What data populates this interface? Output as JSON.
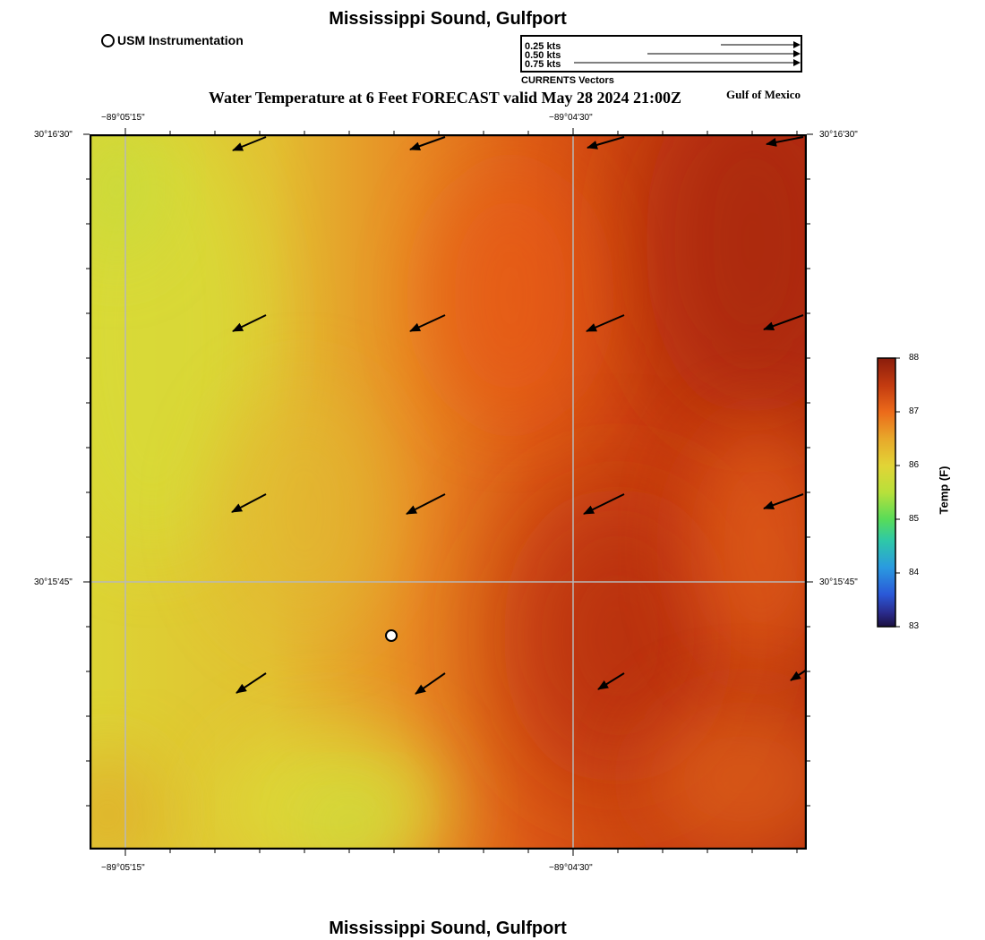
{
  "header": {
    "title": "Mississippi Sound, Gulfport",
    "subtitle": "Water Temperature at 6 Feet FORECAST valid May 28 2024 21:00Z",
    "region": "Gulf of Mexico"
  },
  "footer": {
    "title": "Mississippi Sound, Gulfport"
  },
  "station_legend": {
    "label": "USM Instrumentation"
  },
  "vector_legend": {
    "caption": "CURRENTS Vectors",
    "entries": [
      {
        "label": "0.25 kts",
        "speed_kts": 0.25
      },
      {
        "label": "0.50 kts",
        "speed_kts": 0.5
      },
      {
        "label": "0.75 kts",
        "speed_kts": 0.75
      }
    ]
  },
  "map": {
    "lon_ticks": [
      "−89°05'15\"",
      "−89°04'30\""
    ],
    "lat_ticks": [
      "30°16'30\"",
      "30°15'45\""
    ],
    "grid": true,
    "vector_direction": "toward southwest"
  },
  "colorbar": {
    "title": "Temp (F)",
    "ticks": [
      "88",
      "87",
      "86",
      "85",
      "84",
      "83"
    ],
    "min": 83,
    "max": 88,
    "colors": [
      "#8a1c0c",
      "#c23a10",
      "#ec6a1a",
      "#e8a82a",
      "#e2d436",
      "#b8e03a",
      "#58dc58",
      "#2ec8a8",
      "#2a9ae0",
      "#2a58d8",
      "#2a2a8a",
      "#1a1040"
    ]
  },
  "chart_data": {
    "type": "heatmap",
    "title": "Water Temperature at 6 Feet FORECAST valid May 28 2024 21:00Z",
    "unit": "Temp (F)",
    "value_range": [
      83,
      88
    ],
    "pattern": "warmest (~87.8 F) in the east/northeast, coolest (~85.8 F) along the western edge and south-center",
    "currents": "arrows point southwest across the domain"
  }
}
